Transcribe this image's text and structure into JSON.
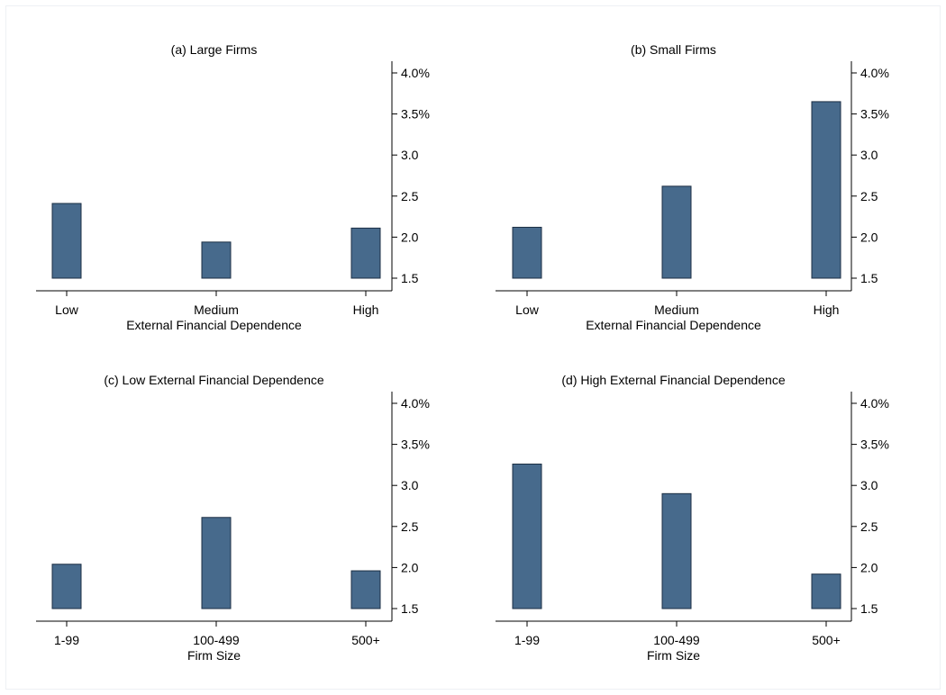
{
  "chart_data": [
    {
      "type": "bar",
      "title": "(a) Large Firms",
      "categories": [
        "Low",
        "Medium",
        "High"
      ],
      "values": [
        2.41,
        1.94,
        2.11
      ],
      "xlabel": "External Financial Dependence",
      "ylim": [
        1.5,
        4.0
      ],
      "yticks": [
        "1.5",
        "2.0",
        "2.5",
        "3.0",
        "3.5%",
        "4.0%"
      ],
      "ytick_values": [
        1.5,
        2.0,
        2.5,
        3.0,
        3.5,
        4.0
      ],
      "y_axis_side": "right",
      "grid": false
    },
    {
      "type": "bar",
      "title": "(b) Small Firms",
      "categories": [
        "Low",
        "Medium",
        "High"
      ],
      "values": [
        2.12,
        2.62,
        3.65
      ],
      "xlabel": "External Financial Dependence",
      "ylim": [
        1.5,
        4.0
      ],
      "yticks": [
        "1.5",
        "2.0",
        "2.5",
        "3.0",
        "3.5%",
        "4.0%"
      ],
      "ytick_values": [
        1.5,
        2.0,
        2.5,
        3.0,
        3.5,
        4.0
      ],
      "y_axis_side": "right",
      "grid": false
    },
    {
      "type": "bar",
      "title": "(c) Low External Financial Dependence",
      "categories": [
        "1-99",
        "100-499",
        "500+"
      ],
      "values": [
        2.04,
        2.61,
        1.96
      ],
      "xlabel": "Firm Size",
      "ylim": [
        1.5,
        4.0
      ],
      "yticks": [
        "1.5",
        "2.0",
        "2.5",
        "3.0",
        "3.5%",
        "4.0%"
      ],
      "ytick_values": [
        1.5,
        2.0,
        2.5,
        3.0,
        3.5,
        4.0
      ],
      "y_axis_side": "right",
      "grid": false
    },
    {
      "type": "bar",
      "title": "(d) High External Financial Dependence",
      "categories": [
        "1-99",
        "100-499",
        "500+"
      ],
      "values": [
        3.26,
        2.9,
        1.92
      ],
      "xlabel": "Firm Size",
      "ylim": [
        1.5,
        4.0
      ],
      "yticks": [
        "1.5",
        "2.0",
        "2.5",
        "3.0",
        "3.5%",
        "4.0%"
      ],
      "ytick_values": [
        1.5,
        2.0,
        2.5,
        3.0,
        3.5,
        4.0
      ],
      "y_axis_side": "right",
      "grid": false
    }
  ],
  "colors": {
    "bar_fill": "#476a8c",
    "bar_stroke": "#1c2f44"
  }
}
